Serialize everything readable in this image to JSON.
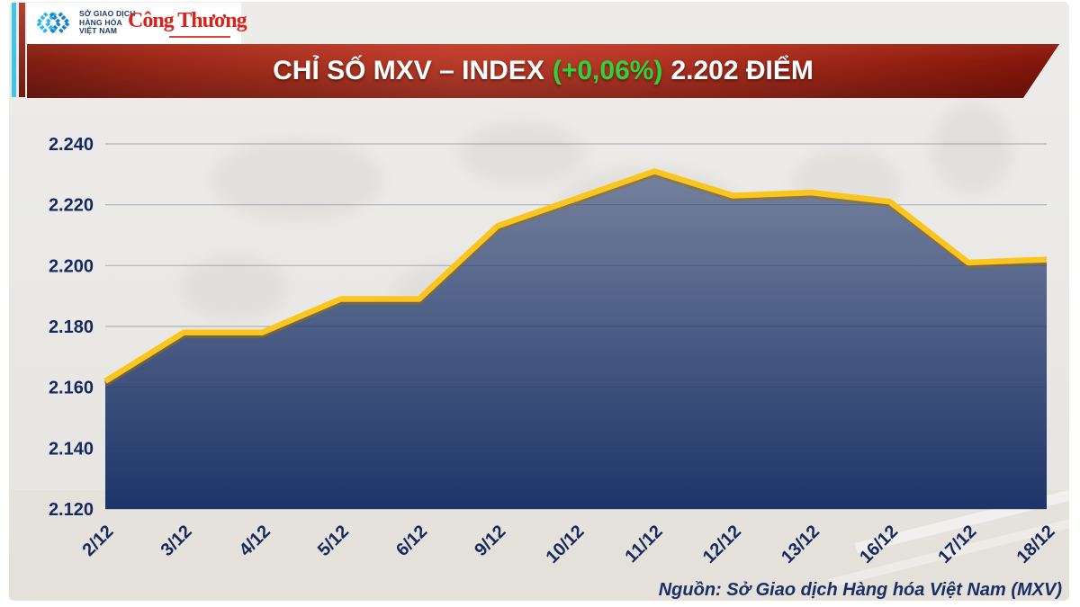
{
  "header": {
    "logo_box": {
      "org_lines": [
        "SỞ GIAO DỊCH",
        "HÀNG HÓA",
        "VIỆT NAM"
      ],
      "congthuong": "Công Thương"
    },
    "banner": {
      "title_main": "CHỈ SỐ MXV – INDEX",
      "title_change": "(+0,06%)",
      "title_points": "2.202 ĐIỂM"
    }
  },
  "chart_data": {
    "type": "area",
    "title": "CHỈ SỐ MXV – INDEX (+0,06%) 2.202 ĐIỂM",
    "x": [
      "2/12",
      "3/12",
      "4/12",
      "5/12",
      "6/12",
      "9/12",
      "10/12",
      "11/12",
      "12/12",
      "13/12",
      "16/12",
      "17/12",
      "18/12"
    ],
    "series": [
      {
        "name": "MXV-Index",
        "values": [
          2162,
          2178,
          2178,
          2189,
          2189,
          2213,
          2222,
          2231,
          2223,
          2224,
          2221,
          2201,
          2202
        ]
      }
    ],
    "ylim": [
      2120,
      2240
    ],
    "yticks": [
      2240,
      2220,
      2200,
      2180,
      2160,
      2140,
      2120
    ],
    "ytick_labels": [
      "2.240",
      "2.220",
      "2.200",
      "2.180",
      "2.160",
      "2.140",
      "2.120"
    ],
    "xlabel": "",
    "ylabel": "",
    "grid": true,
    "legend": "none",
    "line_color": "#fcc51c",
    "line_shadow_color": "#9c7207",
    "area_top_color": "#76829f",
    "area_bottom_color": "#1c3468",
    "label_color": "#16295e",
    "change_color": "#31d13a"
  },
  "footer": {
    "source": "Nguồn: Sở Giao dịch Hàng hóa Việt Nam (MXV)"
  }
}
